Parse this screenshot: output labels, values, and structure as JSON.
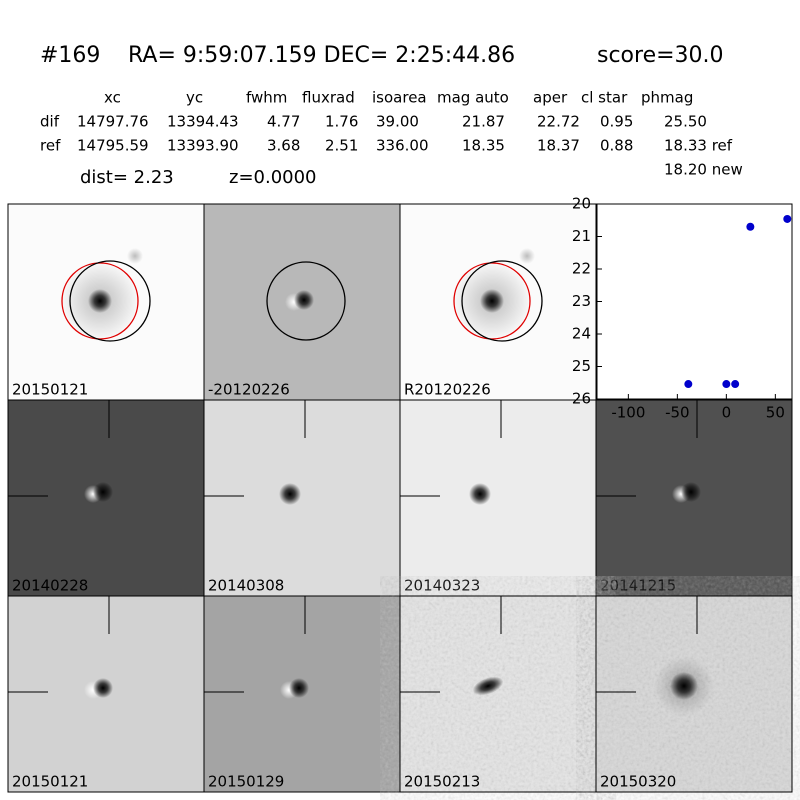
{
  "header": {
    "id": "#169",
    "coords": "RA= 9:59:07.159 DEC= 2:25:44.86",
    "score": "score=30.0"
  },
  "table": {
    "columns": [
      "xc",
      "yc",
      "fwhm",
      "fluxrad",
      "isoarea",
      "mag auto",
      "aper",
      "cl star",
      "phmag"
    ],
    "rows": [
      [
        "dif",
        "14797.76",
        "13394.43",
        "4.77",
        "1.76",
        "39.00",
        "21.87",
        "22.72",
        "0.95",
        "25.50"
      ],
      [
        "ref",
        "14795.59",
        "13393.90",
        "3.68",
        "2.51",
        "336.00",
        "18.35",
        "18.37",
        "0.88",
        "18.33 ref"
      ]
    ],
    "extra": "18.20 new",
    "dist": "dist=  2.23",
    "z": "z=0.0000"
  },
  "panels": [
    {
      "label": "20150121",
      "bg": "#fbfbfb"
    },
    {
      "label": "-20120226",
      "bg": "#b8b8b8"
    },
    {
      "label": "R20120226",
      "bg": "#fbfbfb"
    },
    {
      "label": "20140228",
      "bg": "#4a4a4a"
    },
    {
      "label": "20140308",
      "bg": "#dcdcdc"
    },
    {
      "label": "20140323",
      "bg": "#ececec"
    },
    {
      "label": "20141215",
      "bg": "#505050"
    },
    {
      "label": "20150121",
      "bg": "#d2d2d2",
      "label_color": "#ff0000"
    },
    {
      "label": "20150129",
      "bg": "#a4a4a4"
    },
    {
      "label": "20150213",
      "bg": "#e6e6e6"
    },
    {
      "label": "20150320",
      "bg": "#d8d8d8"
    }
  ],
  "chart_data": {
    "type": "scatter",
    "color": "#0000cc",
    "x": [
      -38.8,
      0,
      9,
      24.5,
      62.2
    ],
    "values": [
      25.54,
      25.54,
      25.54,
      20.7,
      20.46
    ],
    "xlim": [
      -132,
      67
    ],
    "xticks": [
      -100,
      -50,
      0,
      50
    ],
    "ylim": [
      20,
      26
    ],
    "yticks": [
      20,
      21,
      22,
      23,
      24,
      25,
      26
    ],
    "y_inverted": true
  }
}
